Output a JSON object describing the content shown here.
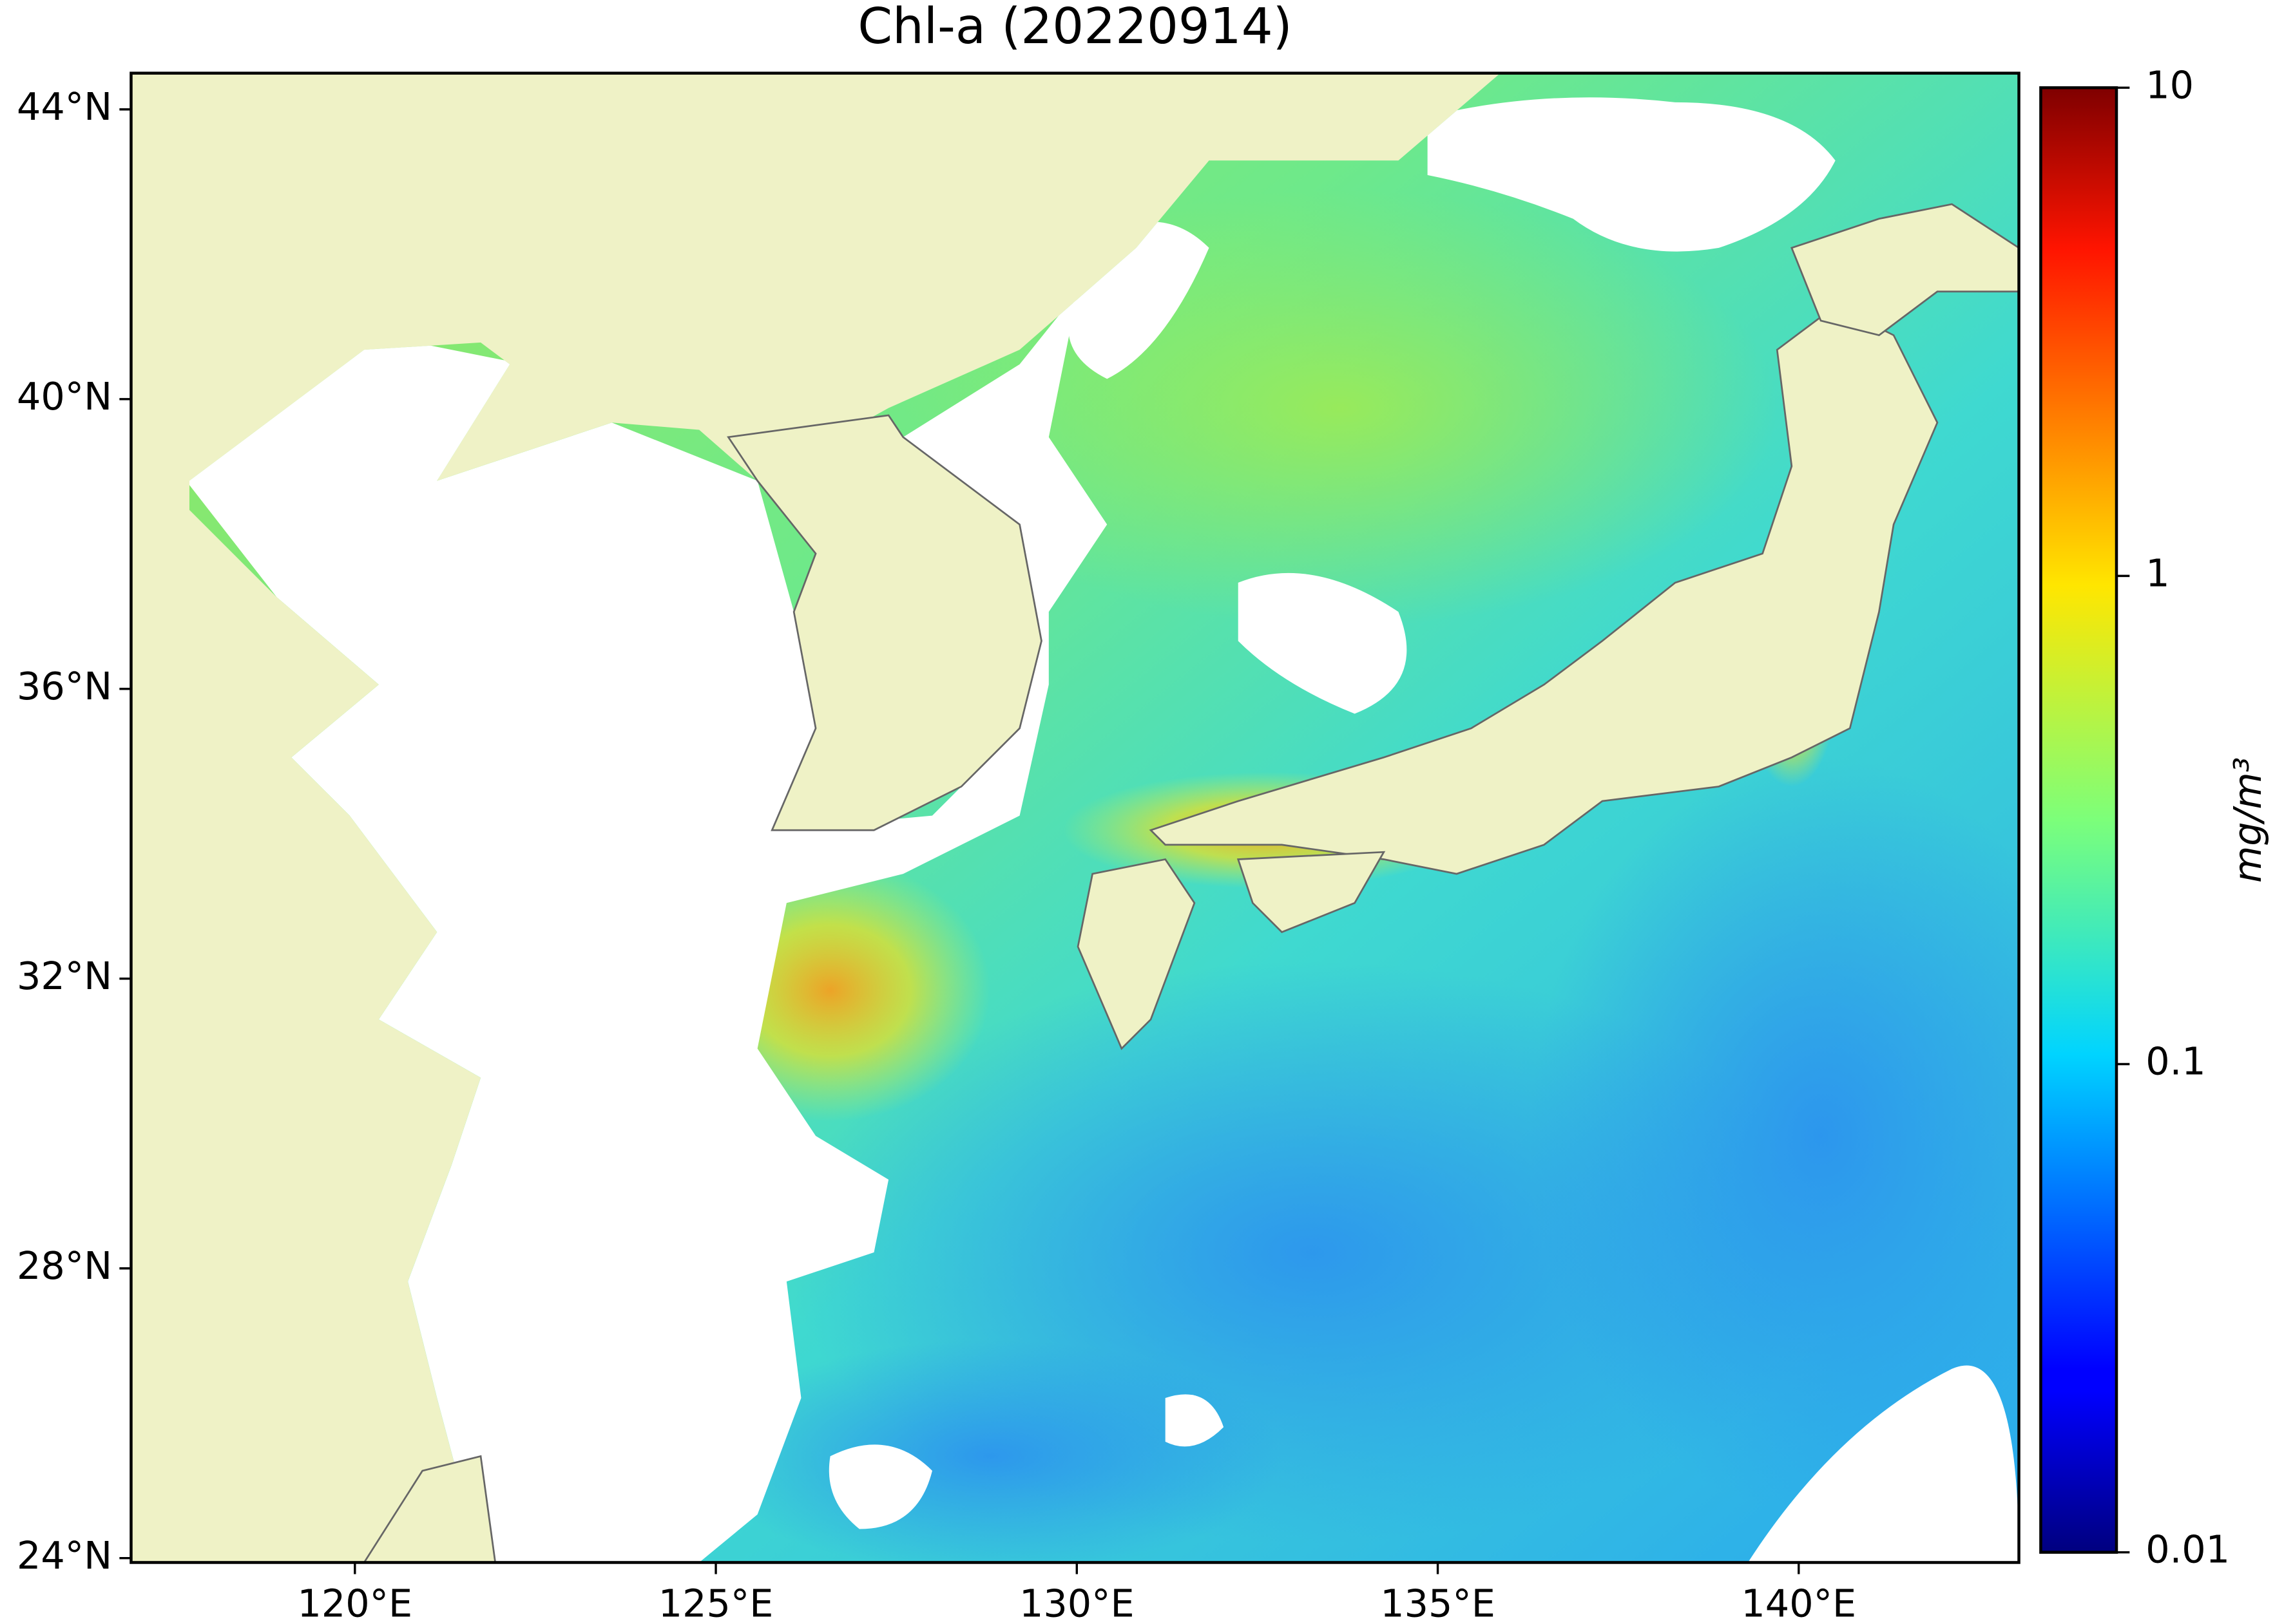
{
  "chart_data": {
    "type": "map",
    "title": "Chl-a (20220914)",
    "xlim": [
      116.9,
      143.05
    ],
    "ylim": [
      23.94,
      44.5
    ],
    "xticks": [
      {
        "value": 120,
        "label": "120°E"
      },
      {
        "value": 125,
        "label": "125°E"
      },
      {
        "value": 130,
        "label": "130°E"
      },
      {
        "value": 135,
        "label": "135°E"
      },
      {
        "value": 140,
        "label": "140°E"
      }
    ],
    "yticks": [
      {
        "value": 24,
        "label": "24°N"
      },
      {
        "value": 28,
        "label": "28°N"
      },
      {
        "value": 32,
        "label": "32°N"
      },
      {
        "value": 36,
        "label": "36°N"
      },
      {
        "value": 40,
        "label": "40°N"
      },
      {
        "value": 44,
        "label": "44°N"
      }
    ],
    "colorbar": {
      "label": "mg/m³",
      "lim": [
        0.01,
        10
      ],
      "ticks": [
        0.01,
        0.1,
        1,
        10
      ],
      "log": true,
      "colormap": "jet"
    }
  }
}
